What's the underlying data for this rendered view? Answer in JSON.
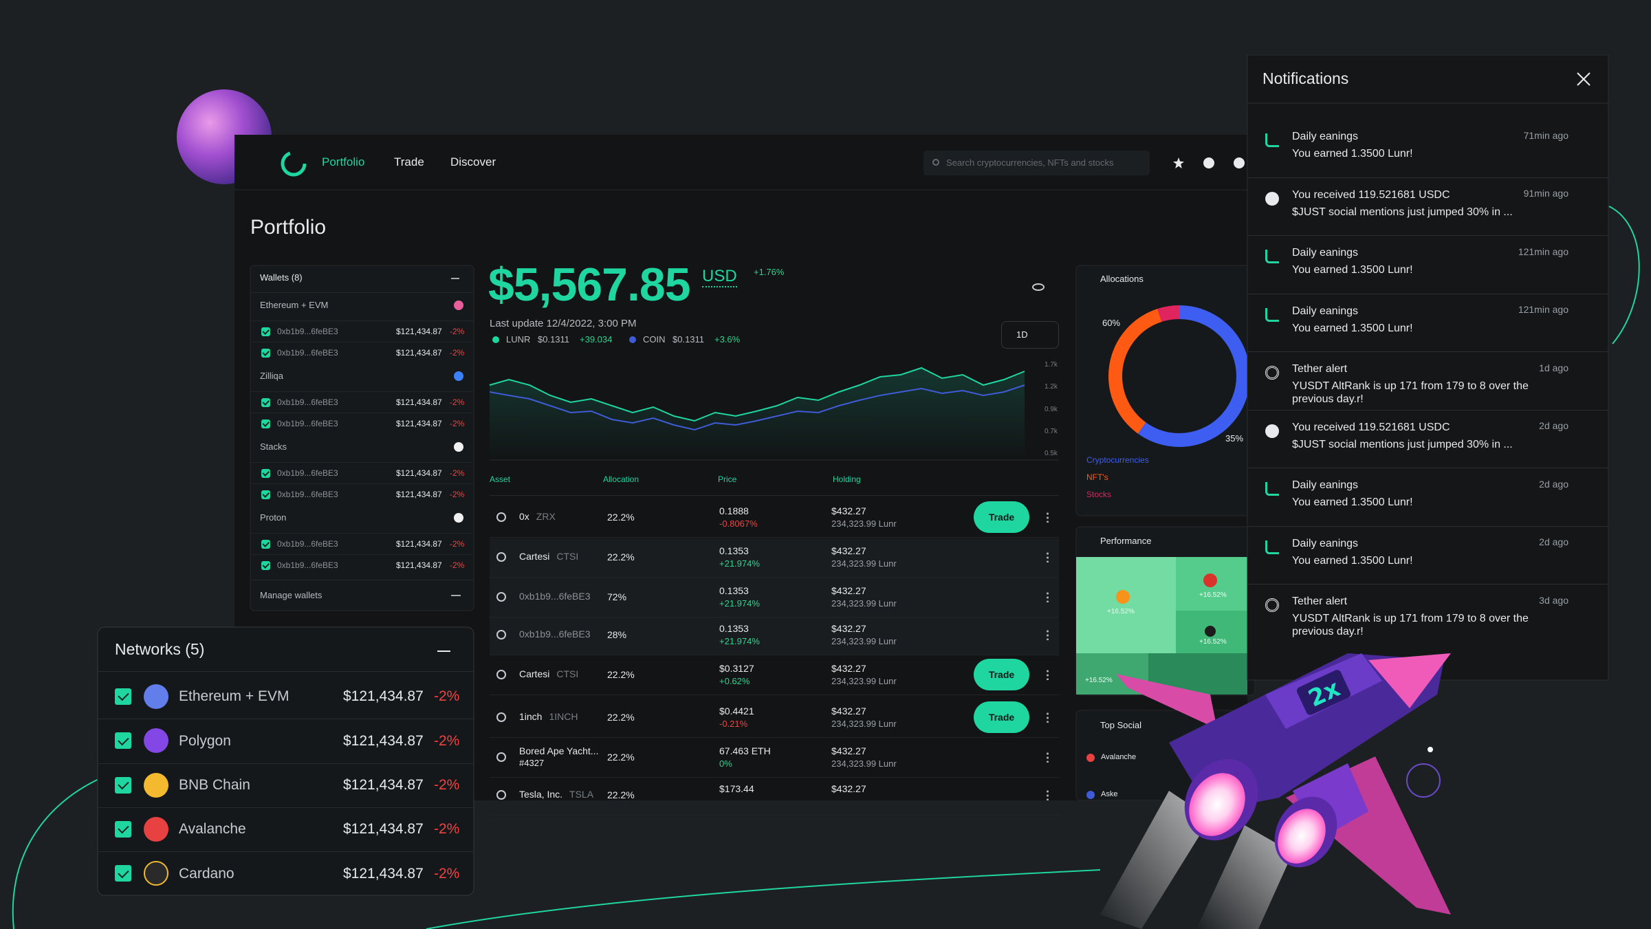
{
  "nav": {
    "items": [
      "Portfolio",
      "Trade",
      "Discover"
    ],
    "search_placeholder": "Search cryptocurrencies, NFTs and stocks"
  },
  "page_title": "Portfolio",
  "wallets": {
    "title": "Wallets (8)",
    "groups": [
      {
        "name": "Ethereum + EVM",
        "rows": [
          {
            "address": "0xb1b9...6feBE3",
            "value": "$121,434.87",
            "change": "-2%"
          },
          {
            "address": "0xb1b9...6feBE3",
            "value": "$121,434.87",
            "change": "-2%"
          }
        ]
      },
      {
        "name": "Zilliqa",
        "rows": [
          {
            "address": "0xb1b9...6feBE3",
            "value": "$121,434.87",
            "change": "-2%"
          },
          {
            "address": "0xb1b9...6feBE3",
            "value": "$121,434.87",
            "change": "-2%"
          }
        ]
      },
      {
        "name": "Stacks",
        "rows": [
          {
            "address": "0xb1b9...6feBE3",
            "value": "$121,434.87",
            "change": "-2%"
          },
          {
            "address": "0xb1b9...6feBE3",
            "value": "$121,434.87",
            "change": "-2%"
          }
        ]
      },
      {
        "name": "Proton",
        "rows": [
          {
            "address": "0xb1b9...6feBE3",
            "value": "$121,434.87",
            "change": "-2%"
          },
          {
            "address": "0xb1b9...6feBE3",
            "value": "$121,434.87",
            "change": "-2%"
          }
        ]
      }
    ],
    "manage": "Manage wallets"
  },
  "balance": {
    "amount": "$5,567.85",
    "currency": "USD",
    "change": "+1.76%",
    "last_update": "Last update 12/4/2022, 3:00 PM",
    "legend": [
      {
        "symbol": "LUNR",
        "price": "$0.1311",
        "change": "+39.034"
      },
      {
        "symbol": "COIN",
        "price": "$0.1311",
        "change": "+3.6%"
      }
    ],
    "range": "1D"
  },
  "chart": {
    "y_labels": [
      "1.7k",
      "1.2k",
      "0.9k",
      "0.7k",
      "0.5k"
    ]
  },
  "assets": {
    "headers": [
      "Asset",
      "Allocation",
      "Price",
      "Holding"
    ],
    "rows": [
      {
        "name": "0x",
        "ticker": "ZRX",
        "allocation": "22.2%",
        "price": "0.1888",
        "price_change": "-0.8067%",
        "holding": "$432.27",
        "holding_sub": "234,323.99 Lunr",
        "action": "Trade"
      },
      {
        "name": "Cartesi",
        "ticker": "CTSI",
        "allocation": "22.2%",
        "price": "0.1353",
        "price_change": "+21.974%",
        "holding": "$432.27",
        "holding_sub": "234,323.99 Lunr"
      },
      {
        "name": "0xb1b9...6feBE3",
        "allocation": "72%",
        "price": "0.1353",
        "price_change": "+21.974%",
        "holding": "$432.27",
        "holding_sub": "234,323.99 Lunr"
      },
      {
        "name": "0xb1b9...6feBE3",
        "allocation": "28%",
        "price": "0.1353",
        "price_change": "+21.974%",
        "holding": "$432.27",
        "holding_sub": "234,323.99 Lunr"
      },
      {
        "name": "Cartesi",
        "ticker": "CTSI",
        "allocation": "22.2%",
        "price": "$0.3127",
        "price_change": "+0.62%",
        "holding": "$432.27",
        "holding_sub": "234,323.99 Lunr",
        "action": "Trade"
      },
      {
        "name": "1inch",
        "ticker": "1INCH",
        "allocation": "22.2%",
        "price": "$0.4421",
        "price_change": "-0.21%",
        "holding": "$432.27",
        "holding_sub": "234,323.99 Lunr",
        "action": "Trade"
      },
      {
        "name": "Bored Ape Yacht...",
        "name_sub": "#4327",
        "allocation": "22.2%",
        "price": "67.463 ETH",
        "price_change": "0%",
        "holding": "$432.27",
        "holding_sub": "234,323.99 Lunr"
      },
      {
        "name": "Tesla, Inc.",
        "ticker": "TSLA",
        "allocation": "22.2%",
        "price": "$173.44",
        "holding": "$432.27"
      }
    ]
  },
  "allocations": {
    "title": "Allocations",
    "labels": [
      "60%",
      "35%"
    ],
    "legend": [
      "Cryptocurrencies",
      "NFT's",
      "Stocks"
    ]
  },
  "performance": {
    "title": "Performance",
    "tiles": [
      "+16.52%",
      "+16.52%",
      "+16.52%",
      "+16.52%"
    ]
  },
  "top_social": {
    "title": "Top Social",
    "items": [
      "Avalanche",
      "Aske"
    ]
  },
  "networks": {
    "title": "Networks (5)",
    "rows": [
      {
        "name": "Ethereum + EVM",
        "value": "$121,434.87",
        "change": "-2%"
      },
      {
        "name": "Polygon",
        "value": "$121,434.87",
        "change": "-2%"
      },
      {
        "name": "BNB Chain",
        "value": "$121,434.87",
        "change": "-2%"
      },
      {
        "name": "Avalanche",
        "value": "$121,434.87",
        "change": "-2%"
      },
      {
        "name": "Cardano",
        "value": "$121,434.87",
        "change": "-2%"
      }
    ]
  },
  "notifications": {
    "title": "Notifications",
    "items": [
      {
        "title": "Daily eanings",
        "body": "You earned 1.3500 Lunr!",
        "time": "71min ago"
      },
      {
        "title": "You received 119.521681 USDC",
        "body": "$JUST social mentions just jumped 30% in ...",
        "time": "91min ago"
      },
      {
        "title": "Daily eanings",
        "body": "You earned 1.3500 Lunr!",
        "time": "121min ago"
      },
      {
        "title": "Daily eanings",
        "body": "You earned 1.3500 Lunr!",
        "time": "121min ago"
      },
      {
        "title": "Tether alert",
        "body": "YUSDT AltRank is up 171 from 179 to 8 over the previous day.r!",
        "time": "1d ago"
      },
      {
        "title": "You received 119.521681 USDC",
        "body": "$JUST social mentions just jumped 30% in ...",
        "time": "2d ago"
      },
      {
        "title": "Daily eanings",
        "body": "You earned 1.3500 Lunr!",
        "time": "2d ago"
      },
      {
        "title": "Daily eanings",
        "body": "You earned 1.3500 Lunr!",
        "time": "2d ago"
      },
      {
        "title": "Tether alert",
        "body": "YUSDT AltRank is up 171 from 179 to 8 over the previous day.r!",
        "time": "3d ago"
      }
    ]
  },
  "ship_badge": "2x"
}
